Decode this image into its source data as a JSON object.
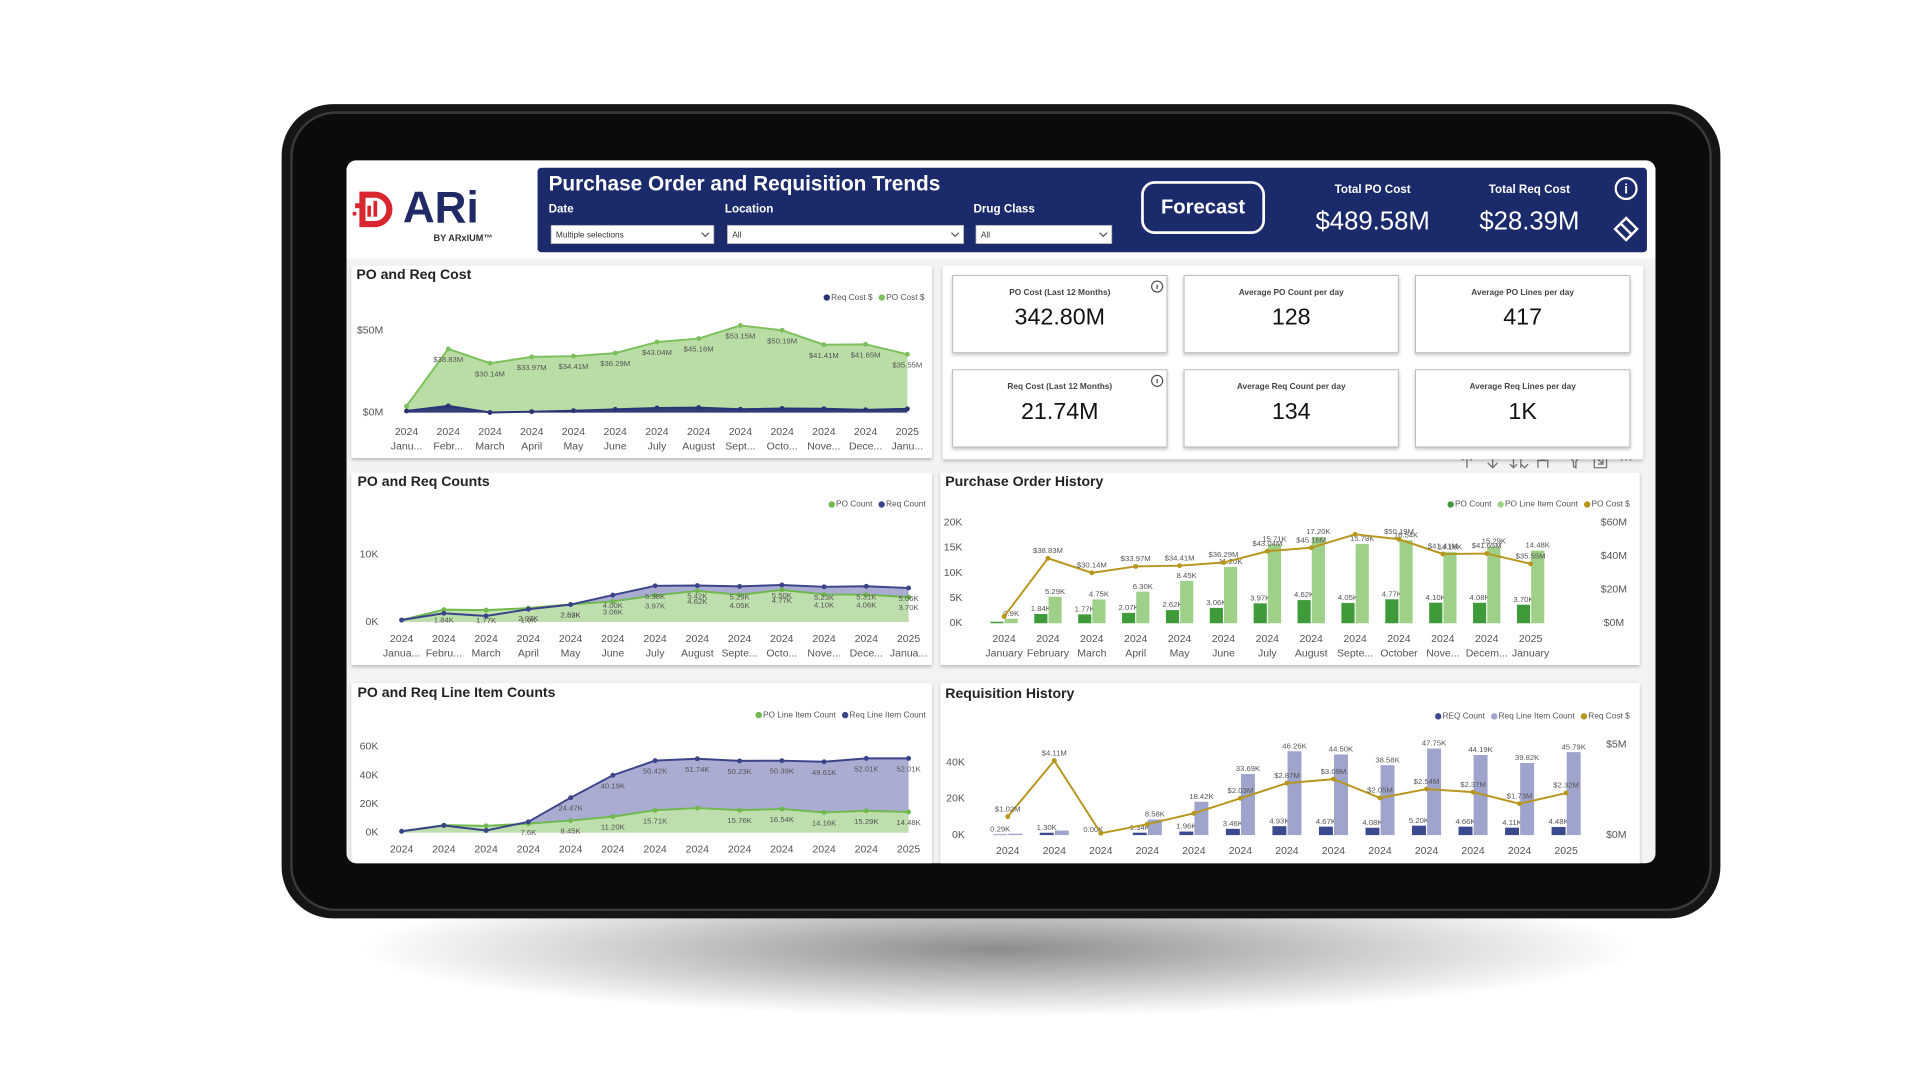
{
  "logo": {
    "brand": "ARi",
    "tagline": "BY ARxIUM™"
  },
  "header": {
    "title": "Purchase Order and Requisition Trends",
    "filters": [
      {
        "label": "Date",
        "value": "Multiple selections"
      },
      {
        "label": "Location",
        "value": "All"
      },
      {
        "label": "Drug Class",
        "value": "All"
      }
    ],
    "button": "Forecast",
    "totals": [
      {
        "label": "Total PO Cost",
        "value": "$489.58M"
      },
      {
        "label": "Total Req Cost",
        "value": "$28.39M"
      }
    ]
  },
  "kpis": [
    {
      "label": "PO Cost (Last 12 Months)",
      "value": "342.80M"
    },
    {
      "label": "Average PO Count per day",
      "value": "128"
    },
    {
      "label": "Average PO Lines per day",
      "value": "417"
    },
    {
      "label": "Req Cost (Last 12 Months)",
      "value": "21.74M"
    },
    {
      "label": "Average Req Count per day",
      "value": "134"
    },
    {
      "label": "Average Req Lines per day",
      "value": "1K"
    }
  ],
  "chart_data": [
    {
      "type": "area",
      "title": "PO and Req Cost",
      "categories": [
        {
          "year": "2024",
          "month": "Janu..."
        },
        {
          "year": "2024",
          "month": "Febr..."
        },
        {
          "year": "2024",
          "month": "March"
        },
        {
          "year": "2024",
          "month": "April"
        },
        {
          "year": "2024",
          "month": "May"
        },
        {
          "year": "2024",
          "month": "June"
        },
        {
          "year": "2024",
          "month": "July"
        },
        {
          "year": "2024",
          "month": "August"
        },
        {
          "year": "2024",
          "month": "Sept..."
        },
        {
          "year": "2024",
          "month": "Octo..."
        },
        {
          "year": "2024",
          "month": "Nove..."
        },
        {
          "year": "2024",
          "month": "Dece..."
        },
        {
          "year": "2025",
          "month": "Janu..."
        }
      ],
      "ylim": [
        0,
        60
      ],
      "yticks": [
        {
          "value": 0,
          "label": "$0M"
        },
        {
          "value": 50,
          "label": "$50M"
        }
      ],
      "series": [
        {
          "name": "Req Cost $",
          "color": "#2b3475",
          "fill": "#2b3475",
          "values": [
            1.02,
            4.11,
            0.1,
            0.6,
            1.2,
            2.03,
            2.87,
            3.09,
            2.05,
            2.54,
            2.37,
            1.73,
            2.32
          ]
        },
        {
          "name": "PO Cost $",
          "color": "#7cbf5c",
          "fill": "#b6dba0",
          "values": [
            4,
            38.83,
            30.14,
            33.97,
            34.41,
            36.29,
            43.04,
            45.16,
            53.15,
            50.19,
            41.41,
            41.65,
            35.55
          ],
          "value_labels": [
            null,
            "$38.83M",
            "$30.14M",
            "$33.97M",
            "$34.41M",
            "$36.29M",
            "$43.04M",
            "$45.16M",
            "$53.15M",
            "$50.19M",
            "$41.41M",
            "$41.65M",
            "$35.55M"
          ]
        }
      ]
    },
    {
      "type": "area",
      "title": "PO and Req Counts",
      "categories": [
        {
          "year": "2024",
          "month": "Janua..."
        },
        {
          "year": "2024",
          "month": "Febru..."
        },
        {
          "year": "2024",
          "month": "March"
        },
        {
          "year": "2024",
          "month": "April"
        },
        {
          "year": "2024",
          "month": "May"
        },
        {
          "year": "2024",
          "month": "June"
        },
        {
          "year": "2024",
          "month": "July"
        },
        {
          "year": "2024",
          "month": "August"
        },
        {
          "year": "2024",
          "month": "Septe..."
        },
        {
          "year": "2024",
          "month": "Octo..."
        },
        {
          "year": "2024",
          "month": "Nove..."
        },
        {
          "year": "2024",
          "month": "Dece..."
        },
        {
          "year": "2025",
          "month": "Janua..."
        }
      ],
      "ylim": [
        0,
        12000
      ],
      "yticks": [
        {
          "value": 0,
          "label": "0K"
        },
        {
          "value": 10000,
          "label": "10K"
        }
      ],
      "series": [
        {
          "name": "PO Count",
          "color": "#6fb94f",
          "fill": "#c0e0ab",
          "values": [
            300,
            1840,
            1770,
            2070,
            2620,
            3060,
            3970,
            4620,
            4050,
            4770,
            4100,
            4060,
            3700
          ],
          "value_labels": [
            null,
            "1.84K",
            "1.77K",
            "2.07K",
            "2.62K",
            "3.06K",
            "3.97K",
            "4.62K",
            "4.05K",
            "4.77K",
            "4.10K",
            "4.06K",
            "3.70K"
          ]
        },
        {
          "name": "Req Count",
          "color": "#3b4489",
          "fill": "#a5a8d0",
          "values": [
            300,
            1300,
            900,
            1900,
            2590,
            4000,
            5380,
            5420,
            5290,
            5500,
            5230,
            5310,
            5060
          ],
          "value_labels": [
            null,
            null,
            null,
            "1.9K",
            "2.59K",
            "4.00K",
            "5.38K",
            "5.42K",
            "5.29K",
            "5.50K",
            "5.23K",
            "5.31K",
            "5.06K"
          ]
        }
      ]
    },
    {
      "type": "area",
      "title": "PO and Req Line Item Counts",
      "categories": [
        "2024",
        "2024",
        "2024",
        "2024",
        "2024",
        "2024",
        "2024",
        "2024",
        "2024",
        "2024",
        "2024",
        "2024",
        "2025"
      ],
      "ylim": [
        0,
        60000
      ],
      "yticks": [
        {
          "value": 0,
          "label": "0K"
        },
        {
          "value": 20000,
          "label": "20K"
        },
        {
          "value": 40000,
          "label": "40K"
        },
        {
          "value": 60000,
          "label": "60K"
        }
      ],
      "series": [
        {
          "name": "PO Line Item Count",
          "color": "#6fb94f",
          "fill": "#c0e0ab",
          "values": [
            900,
            5290,
            4750,
            6300,
            8450,
            11200,
            15710,
            17200,
            15760,
            16540,
            14160,
            15290,
            14480
          ],
          "value_labels": [
            null,
            null,
            null,
            null,
            "8.45K",
            "11.20K",
            "15.71K",
            null,
            "15.76K",
            "16.54K",
            "14.16K",
            "15.29K",
            "14.48K"
          ]
        },
        {
          "name": "Req Line Item Count",
          "color": "#3b4489",
          "fill": "#a5a8d0",
          "values": [
            1000,
            5000,
            1500,
            7600,
            24470,
            40190,
            50420,
            51740,
            50230,
            50390,
            49610,
            52010,
            52010
          ],
          "value_labels": [
            null,
            null,
            null,
            "7.6K",
            "24.47K",
            "40.19K",
            "50.42K",
            "51.74K",
            "50.23K",
            "50.39K",
            "49.61K",
            "52.01K",
            "52.01K"
          ]
        }
      ]
    },
    {
      "type": "combo",
      "title": "Purchase Order History",
      "categories": [
        {
          "year": "2024",
          "month": "January"
        },
        {
          "year": "2024",
          "month": "February"
        },
        {
          "year": "2024",
          "month": "March"
        },
        {
          "year": "2024",
          "month": "April"
        },
        {
          "year": "2024",
          "month": "May"
        },
        {
          "year": "2024",
          "month": "June"
        },
        {
          "year": "2024",
          "month": "July"
        },
        {
          "year": "2024",
          "month": "August"
        },
        {
          "year": "2024",
          "month": "Septe..."
        },
        {
          "year": "2024",
          "month": "October"
        },
        {
          "year": "2024",
          "month": "Nove..."
        },
        {
          "year": "2024",
          "month": "Decem..."
        },
        {
          "year": "2025",
          "month": "January"
        }
      ],
      "ylim": [
        0,
        20000
      ],
      "yticks": [
        {
          "value": 0,
          "label": "0K"
        },
        {
          "value": 5000,
          "label": "5K"
        },
        {
          "value": 10000,
          "label": "10K"
        },
        {
          "value": 15000,
          "label": "15K"
        },
        {
          "value": 20000,
          "label": "20K"
        }
      ],
      "y2lim": [
        0,
        60
      ],
      "y2ticks": [
        {
          "value": 0,
          "label": "$0M"
        },
        {
          "value": 20,
          "label": "$20M"
        },
        {
          "value": 40,
          "label": "$40M"
        },
        {
          "value": 60,
          "label": "$60M"
        }
      ],
      "series": [
        {
          "name": "PO Count",
          "type": "bar",
          "color": "#3f9a3a",
          "values": [
            300,
            1840,
            1770,
            2070,
            2620,
            3060,
            3970,
            4620,
            4050,
            4770,
            4100,
            4080,
            3700
          ],
          "value_labels": [
            null,
            "1.84K",
            "1.77K",
            "2.07K",
            "2.62K",
            "3.06K",
            "3.97K",
            "4.62K",
            "4.05K",
            "4.77K",
            "4.10K",
            "4.08K",
            "3.70K"
          ]
        },
        {
          "name": "PO Line Item Count",
          "type": "bar",
          "color": "#9fd08a",
          "values": [
            900,
            5290,
            4750,
            6300,
            8450,
            11200,
            15710,
            17200,
            15780,
            16540,
            14160,
            15290,
            14480
          ],
          "value_labels": [
            "0.9K",
            "5.29K",
            "4.75K",
            "6.30K",
            "8.45K",
            "11.20K",
            "15.71K",
            "17.20K",
            "15.78K",
            "16.54K",
            "14.16K",
            "15.29K",
            "14.48K"
          ]
        },
        {
          "name": "PO Cost $",
          "type": "line",
          "axis": "y2",
          "color": "#b8961e",
          "values": [
            4,
            38.83,
            30.14,
            33.97,
            34.41,
            36.29,
            43.04,
            45.16,
            53.15,
            50.19,
            41.41,
            41.65,
            35.55
          ],
          "value_labels": [
            null,
            "$38.83M",
            "$30.14M",
            "$33.97M",
            "$34.41M",
            "$36.29M",
            "$43.04M",
            "$45.16M",
            null,
            "$50.19M",
            "$41.41M",
            "$41.65M",
            "$35.55M"
          ]
        }
      ]
    },
    {
      "type": "combo",
      "title": "Requisition History",
      "categories": [
        "2024",
        "2024",
        "2024",
        "2024",
        "2024",
        "2024",
        "2024",
        "2024",
        "2024",
        "2024",
        "2024",
        "2024",
        "2025"
      ],
      "ylim": [
        0,
        50000
      ],
      "yticks": [
        {
          "value": 0,
          "label": "0K"
        },
        {
          "value": 20000,
          "label": "20K"
        },
        {
          "value": 40000,
          "label": "40K"
        }
      ],
      "y2lim": [
        0,
        5
      ],
      "y2ticks": [
        {
          "value": 0,
          "label": "$0M"
        },
        {
          "value": 5,
          "label": "$5M"
        }
      ],
      "series": [
        {
          "name": "REQ Count",
          "type": "bar",
          "color": "#3b4a8e",
          "values": [
            290,
            1300,
            0,
            1340,
            1960,
            3460,
            4930,
            4670,
            4080,
            5200,
            4660,
            4110,
            4480
          ],
          "value_labels": [
            "0.29K",
            "1.30K",
            "0.00K",
            "1.34K",
            "1.96K",
            "3.46K",
            "4.93K",
            "4.67K",
            "4.08K",
            "5.20K",
            "4.66K",
            "4.11K",
            "4.48K"
          ]
        },
        {
          "name": "Req Line Item Count",
          "type": "bar",
          "color": "#9ea4cc",
          "values": [
            800,
            2500,
            0,
            8580,
            18420,
            33690,
            46260,
            44500,
            38580,
            47750,
            44190,
            39820,
            45790
          ],
          "value_labels": [
            null,
            null,
            null,
            "8.58K",
            "18.42K",
            "33.69K",
            "46.26K",
            "44.50K",
            "38.58K",
            "47.75K",
            "44.19K",
            "39.82K",
            "45.79K"
          ]
        },
        {
          "name": "Req Cost $",
          "type": "line",
          "axis": "y2",
          "color": "#b8961e",
          "values": [
            1.02,
            4.11,
            0.1,
            0.6,
            1.2,
            2.03,
            2.87,
            3.09,
            2.05,
            2.54,
            2.37,
            1.73,
            2.32
          ],
          "value_labels": [
            "$1.02M",
            "$4.11M",
            null,
            null,
            null,
            "$2.03M",
            "$2.87M",
            "$3.09M",
            "$2.05M",
            "$2.54M",
            "$2.37M",
            "$1.73M",
            "$2.32M"
          ]
        }
      ]
    }
  ]
}
